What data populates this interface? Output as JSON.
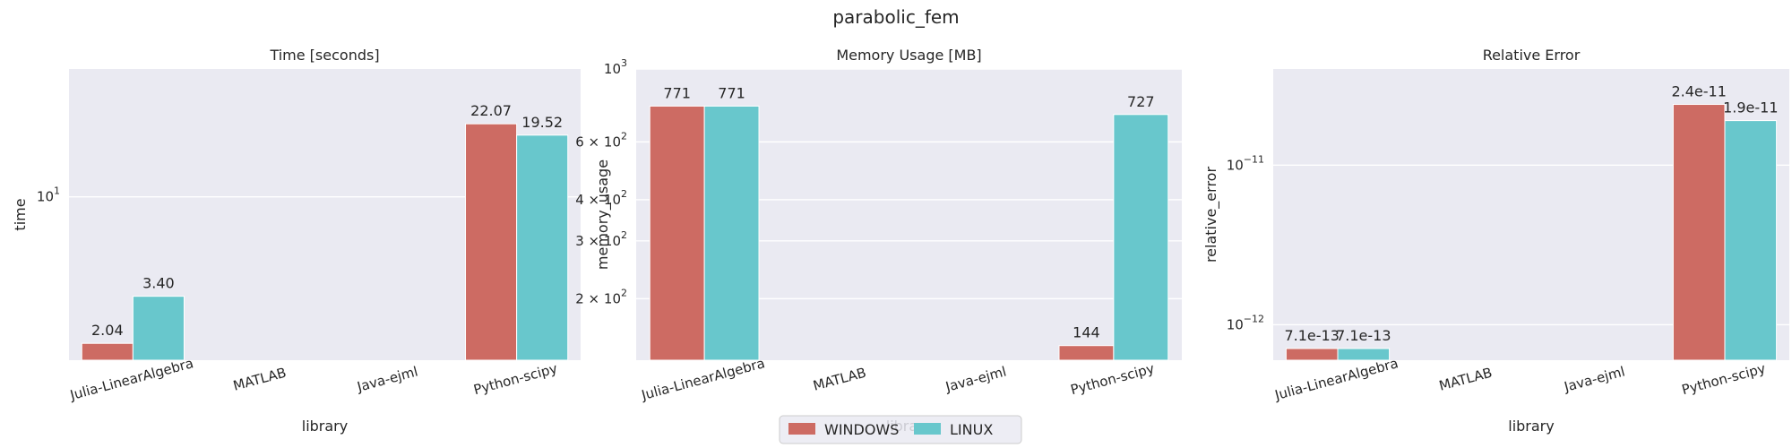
{
  "figure": {
    "suptitle": "parabolic_fem",
    "colors": {
      "panel_bg": "#eaeaf2",
      "grid": "#ffffff",
      "text": "#262626"
    }
  },
  "legend": {
    "placement": "lower-center",
    "entries": [
      {
        "label": "WINDOWS",
        "color": "#cd6b63"
      },
      {
        "label": "LINUX",
        "color": "#68c7cc"
      }
    ]
  },
  "chart_data": [
    {
      "type": "bar",
      "title": "Time [seconds]",
      "xlabel": "library",
      "ylabel": "time",
      "yscale": "log",
      "ylim": [
        1.7,
        40
      ],
      "yticks": [
        {
          "value": 10,
          "base": "10",
          "exp": "1"
        }
      ],
      "grid": true,
      "categories": [
        "Julia-LinearAlgebra",
        "MATLAB",
        "Java-ejml",
        "Python-scipy"
      ],
      "series": [
        {
          "name": "WINDOWS",
          "color": "#cd6b63",
          "values": [
            2.04,
            null,
            null,
            22.07
          ],
          "labels": [
            "2.04",
            "",
            "",
            "22.07"
          ]
        },
        {
          "name": "LINUX",
          "color": "#68c7cc",
          "values": [
            3.4,
            null,
            null,
            19.52
          ],
          "labels": [
            "3.40",
            "",
            "",
            "19.52"
          ]
        }
      ]
    },
    {
      "type": "bar",
      "title": "Memory Usage [MB]",
      "xlabel": "library",
      "ylabel": "memory_usage",
      "yscale": "log",
      "ylim": [
        130,
        1000
      ],
      "yticks": [
        {
          "value": 1000,
          "base": "10",
          "exp": "3"
        },
        {
          "value": 600,
          "base": "6 × 10",
          "exp": "2"
        },
        {
          "value": 400,
          "base": "4 × 10",
          "exp": "2"
        },
        {
          "value": 300,
          "base": "3 × 10",
          "exp": "2"
        },
        {
          "value": 200,
          "base": "2 × 10",
          "exp": "2"
        }
      ],
      "grid": true,
      "categories": [
        "Julia-LinearAlgebra",
        "MATLAB",
        "Java-ejml",
        "Python-scipy"
      ],
      "series": [
        {
          "name": "WINDOWS",
          "color": "#cd6b63",
          "values": [
            771,
            null,
            null,
            144
          ],
          "labels": [
            "771",
            "",
            "",
            "144"
          ]
        },
        {
          "name": "LINUX",
          "color": "#68c7cc",
          "values": [
            771,
            null,
            null,
            727
          ],
          "labels": [
            "771",
            "",
            "",
            "727"
          ]
        }
      ]
    },
    {
      "type": "bar",
      "title": "Relative Error",
      "xlabel": "library",
      "ylabel": "relative_error",
      "yscale": "log",
      "ylim": [
        6e-13,
        4e-11
      ],
      "yticks": [
        {
          "value": 1e-11,
          "base": "10",
          "exp": "−11"
        },
        {
          "value": 1e-12,
          "base": "10",
          "exp": "−12"
        }
      ],
      "grid": true,
      "categories": [
        "Julia-LinearAlgebra",
        "MATLAB",
        "Java-ejml",
        "Python-scipy"
      ],
      "series": [
        {
          "name": "WINDOWS",
          "color": "#cd6b63",
          "values": [
            7.1e-13,
            null,
            null,
            2.4e-11
          ],
          "labels": [
            "7.1e-13",
            "",
            "",
            "2.4e-11"
          ]
        },
        {
          "name": "LINUX",
          "color": "#68c7cc",
          "values": [
            7.1e-13,
            null,
            null,
            1.9e-11
          ],
          "labels": [
            "7.1e-13",
            "",
            "",
            "1.9e-11"
          ]
        }
      ]
    }
  ]
}
